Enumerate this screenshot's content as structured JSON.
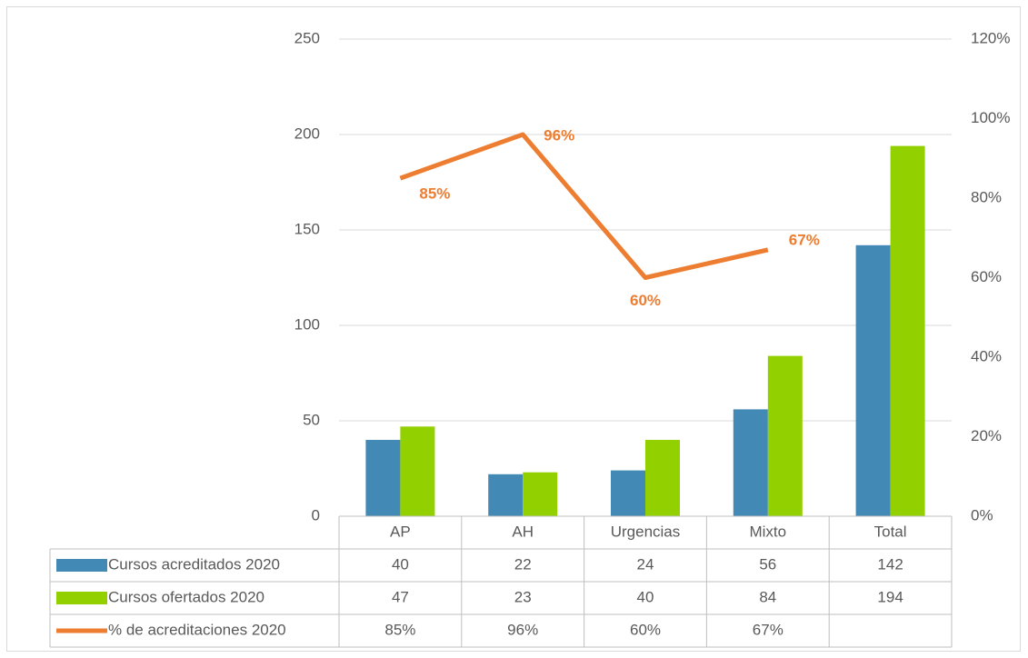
{
  "chart_data": {
    "type": "bar",
    "categories": [
      "AP",
      "AH",
      "Urgencias",
      "Mixto",
      "Total"
    ],
    "series": [
      {
        "name": "Cursos acreditados 2020",
        "color": "#4389b5",
        "values": [
          40,
          22,
          24,
          56,
          142
        ]
      },
      {
        "name": "Cursos ofertados 2020",
        "color": "#92d000",
        "values": [
          47,
          23,
          40,
          84,
          194
        ]
      },
      {
        "name": "% de acreditaciones 2020",
        "color": "#ed7d31",
        "type": "line",
        "axis": "y2",
        "values": [
          85,
          96,
          60,
          67,
          null
        ],
        "value_labels": [
          "85%",
          "96%",
          "60%",
          "67%",
          null
        ]
      }
    ],
    "ylim": [
      0,
      250
    ],
    "yticks": [
      0,
      50,
      100,
      150,
      200,
      250
    ],
    "y2lim": [
      0,
      120
    ],
    "y2ticks": [
      {
        "value": 0,
        "label": "0%"
      },
      {
        "value": 20,
        "label": "20%"
      },
      {
        "value": 40,
        "label": "40%"
      },
      {
        "value": 60,
        "label": "60%"
      },
      {
        "value": 80,
        "label": "80%"
      },
      {
        "value": 100,
        "label": "100%"
      },
      {
        "value": 120,
        "label": "120%"
      }
    ],
    "grid": true,
    "data_table": true
  }
}
